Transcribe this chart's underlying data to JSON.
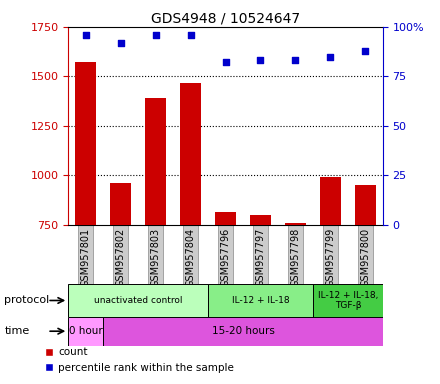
{
  "title": "GDS4948 / 10524647",
  "samples": [
    "GSM957801",
    "GSM957802",
    "GSM957803",
    "GSM957804",
    "GSM957796",
    "GSM957797",
    "GSM957798",
    "GSM957799",
    "GSM957800"
  ],
  "counts": [
    1570,
    960,
    1390,
    1465,
    815,
    800,
    760,
    990,
    950
  ],
  "percentile_ranks": [
    96,
    92,
    96,
    96,
    82,
    83,
    83,
    85,
    88
  ],
  "ylim_left": [
    750,
    1750
  ],
  "ylim_right": [
    0,
    100
  ],
  "yticks_left": [
    750,
    1000,
    1250,
    1500,
    1750
  ],
  "yticks_right": [
    0,
    25,
    50,
    75,
    100
  ],
  "bar_color": "#cc0000",
  "scatter_color": "#0000cc",
  "protocol_groups": [
    {
      "label": "unactivated control",
      "start": 0,
      "end": 4,
      "color": "#bbffbb"
    },
    {
      "label": "IL-12 + IL-18",
      "start": 4,
      "end": 7,
      "color": "#88ee88"
    },
    {
      "label": "IL-12 + IL-18,\nTGF-β",
      "start": 7,
      "end": 9,
      "color": "#44cc44"
    }
  ],
  "time_groups": [
    {
      "label": "0 hour",
      "start": 0,
      "end": 1,
      "color": "#ff99ff"
    },
    {
      "label": "15-20 hours",
      "start": 1,
      "end": 9,
      "color": "#dd55dd"
    }
  ],
  "legend_count_label": "count",
  "legend_percentile_label": "percentile rank within the sample",
  "left_axis_color": "#cc0000",
  "right_axis_color": "#0000cc"
}
